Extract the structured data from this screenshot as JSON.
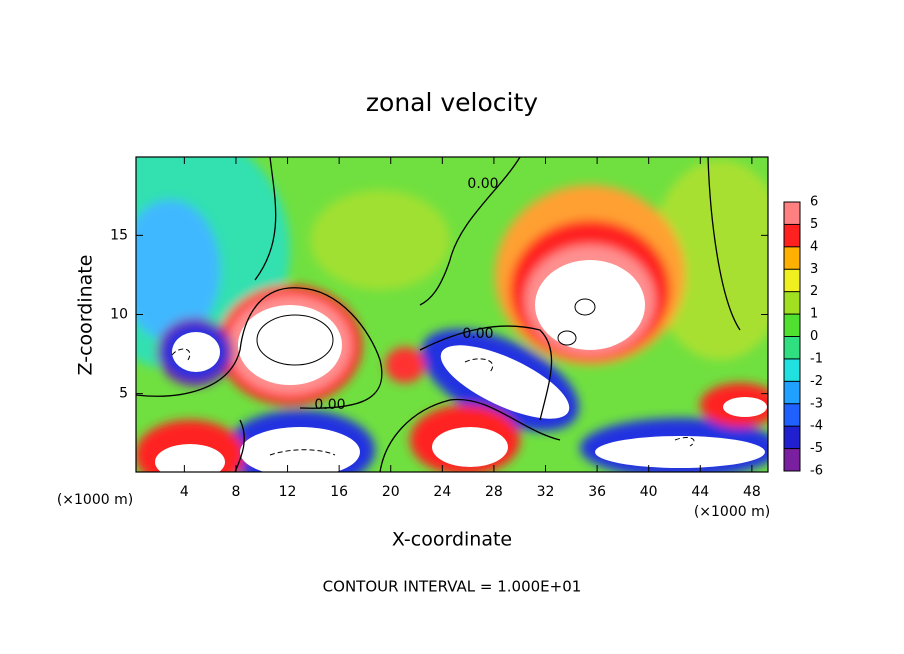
{
  "chart_data": {
    "type": "contour",
    "title": "zonal velocity",
    "x_label": "X-coordinate",
    "y_label": "Z-coordinate",
    "x_unit": "(×1000 m)",
    "footnote": "CONTOUR INTERVAL = 1.000E+01",
    "contour_label": {
      "value": 0,
      "label": "0.00"
    },
    "xlim": [
      0.25,
      49.25
    ],
    "ylim": [
      0.05,
      19.95
    ],
    "xticks": [
      4,
      8,
      12,
      16,
      20,
      24,
      28,
      32,
      36,
      40,
      44,
      48
    ],
    "yticks": [
      5,
      10,
      15
    ],
    "colorbar": {
      "levels": [
        -6,
        -5,
        -4,
        -3,
        -2,
        -1,
        0,
        1,
        2,
        3,
        4,
        5,
        6
      ],
      "colors": [
        "#7a1fa0",
        "#2020d0",
        "#2060ff",
        "#20a0ff",
        "#20e0e0",
        "#30e080",
        "#50e030",
        "#a0e020",
        "#f0f020",
        "#ffb000",
        "#ff2020",
        "#ff8080"
      ]
    }
  }
}
